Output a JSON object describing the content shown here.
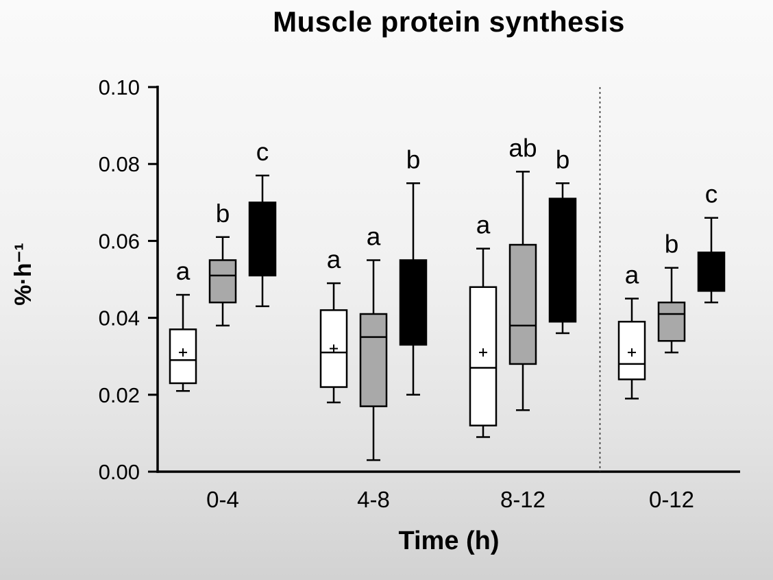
{
  "chart_data": {
    "type": "boxplot",
    "title": "Muscle protein synthesis",
    "xlabel": "Time (h)",
    "ylabel": "%·h⁻¹",
    "ylim": [
      0.0,
      0.1
    ],
    "grid": false,
    "yticks": [
      {
        "value": 0.1,
        "label": "0.10"
      },
      {
        "value": 0.08,
        "label": "0.08"
      },
      {
        "value": 0.06,
        "label": "0.06"
      },
      {
        "value": 0.04,
        "label": "0.04"
      },
      {
        "value": 0.02,
        "label": "0.02"
      },
      {
        "value": 0.0,
        "label": "0.00"
      }
    ],
    "colors": {
      "white": "#ffffff",
      "gray": "#a9a9a9",
      "black": "#000000"
    },
    "divider_after_category": "8-12",
    "groups": [
      {
        "category": "0-4",
        "boxes": [
          {
            "fill": "white",
            "letter": "a",
            "low": 0.021,
            "q1": 0.023,
            "median": 0.029,
            "q3": 0.037,
            "high": 0.046,
            "mean": 0.031
          },
          {
            "fill": "gray",
            "letter": "b",
            "low": 0.038,
            "q1": 0.044,
            "median": 0.051,
            "q3": 0.055,
            "high": 0.061,
            "mean": null
          },
          {
            "fill": "black",
            "letter": "c",
            "low": 0.043,
            "q1": 0.051,
            "median": null,
            "q3": 0.07,
            "high": 0.077,
            "mean": null
          }
        ]
      },
      {
        "category": "4-8",
        "boxes": [
          {
            "fill": "white",
            "letter": "a",
            "low": 0.018,
            "q1": 0.022,
            "median": 0.031,
            "q3": 0.042,
            "high": 0.049,
            "mean": 0.032
          },
          {
            "fill": "gray",
            "letter": "a",
            "low": 0.003,
            "q1": 0.017,
            "median": 0.035,
            "q3": 0.041,
            "high": 0.055,
            "mean": null
          },
          {
            "fill": "black",
            "letter": "b",
            "low": 0.02,
            "q1": 0.033,
            "median": null,
            "q3": 0.055,
            "high": 0.075,
            "mean": null
          }
        ]
      },
      {
        "category": "8-12",
        "boxes": [
          {
            "fill": "white",
            "letter": "a",
            "low": 0.009,
            "q1": 0.012,
            "median": 0.027,
            "q3": 0.048,
            "high": 0.058,
            "mean": 0.031
          },
          {
            "fill": "gray",
            "letter": "ab",
            "low": 0.016,
            "q1": 0.028,
            "median": 0.038,
            "q3": 0.059,
            "high": 0.078,
            "mean": null
          },
          {
            "fill": "black",
            "letter": "b",
            "low": 0.036,
            "q1": 0.039,
            "median": null,
            "q3": 0.071,
            "high": 0.075,
            "mean": null
          }
        ]
      },
      {
        "category": "0-12",
        "boxes": [
          {
            "fill": "white",
            "letter": "a",
            "low": 0.019,
            "q1": 0.024,
            "median": 0.028,
            "q3": 0.039,
            "high": 0.045,
            "mean": 0.031
          },
          {
            "fill": "gray",
            "letter": "b",
            "low": 0.031,
            "q1": 0.034,
            "median": 0.041,
            "q3": 0.044,
            "high": 0.053,
            "mean": null
          },
          {
            "fill": "black",
            "letter": "c",
            "low": 0.044,
            "q1": 0.047,
            "median": null,
            "q3": 0.057,
            "high": 0.066,
            "mean": null
          }
        ]
      }
    ]
  }
}
